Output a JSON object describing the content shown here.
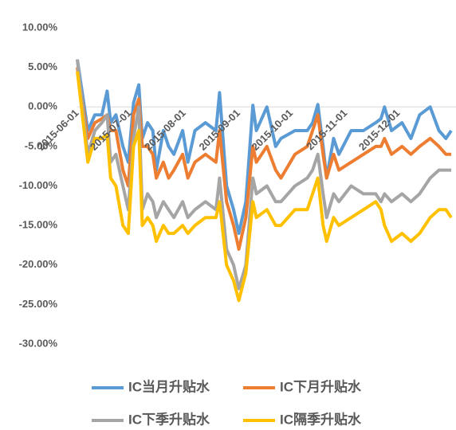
{
  "chart_data": {
    "type": "line",
    "x": [
      "2015-06-01",
      "2015-06-07",
      "2015-06-11",
      "2015-06-15",
      "2015-06-18",
      "2015-06-20",
      "2015-06-23",
      "2015-06-27",
      "2015-06-30",
      "2015-07-03",
      "2015-07-06",
      "2015-07-08",
      "2015-07-11",
      "2015-07-14",
      "2015-07-16",
      "2015-07-20",
      "2015-07-23",
      "2015-07-26",
      "2015-07-31",
      "2015-08-03",
      "2015-08-07",
      "2015-08-13",
      "2015-08-19",
      "2015-08-21",
      "2015-08-25",
      "2015-08-29",
      "2015-09-01",
      "2015-09-05",
      "2015-09-09",
      "2015-09-11",
      "2015-09-17",
      "2015-09-22",
      "2015-09-25",
      "2015-10-03",
      "2015-10-10",
      "2015-10-13",
      "2015-10-16",
      "2015-10-19",
      "2015-10-21",
      "2015-10-25",
      "2015-10-28",
      "2015-11-04",
      "2015-11-11",
      "2015-11-18",
      "2015-11-21",
      "2015-11-23",
      "2015-11-27",
      "2015-12-03",
      "2015-12-08",
      "2015-12-13",
      "2015-12-19",
      "2015-12-24",
      "2015-12-28",
      "2015-12-31"
    ],
    "series": [
      {
        "name": "IC当月升贴水",
        "color": "#5b9bd5",
        "values": [
          6,
          -3,
          -1,
          -1,
          2,
          -2,
          -1,
          -5,
          -7,
          0.5,
          2.8,
          -4,
          -2,
          -3,
          -8,
          -3,
          -5,
          -6,
          -3,
          -7,
          -3,
          -2,
          -3,
          1.8,
          -10,
          -13,
          -16,
          -12,
          0.2,
          -3,
          0,
          -5,
          -4,
          -3,
          -3,
          -2,
          0.3,
          -5,
          -9,
          -4,
          -6,
          -3,
          -3,
          -2,
          -1.5,
          0,
          -3,
          -2,
          -4,
          -1,
          0,
          -3,
          -4,
          -3
        ]
      },
      {
        "name": "IC下月升贴水",
        "color": "#ed7d31",
        "values": [
          5,
          -4,
          -2,
          -1.5,
          -1,
          -3,
          -3,
          -8,
          -10,
          -1,
          1,
          -5,
          -5,
          -6,
          -9,
          -7,
          -9,
          -8,
          -6,
          -9,
          -7,
          -6,
          -7,
          -3,
          -12,
          -15,
          -18,
          -14,
          -5,
          -7,
          -5,
          -8,
          -9,
          -6,
          -5,
          -3,
          -1,
          -6,
          -9,
          -6,
          -8,
          -7,
          -6,
          -5,
          -5,
          -4,
          -6,
          -5,
          -6,
          -5,
          -4,
          -5,
          -6,
          -6
        ]
      },
      {
        "name": "IC下季升贴水",
        "color": "#a5a5a5",
        "values": [
          6,
          -6,
          -3,
          -2,
          -1,
          -7,
          -6,
          -10,
          -13,
          -4,
          0,
          -13,
          -11,
          -12,
          -14,
          -12,
          -13,
          -14,
          -12,
          -14,
          -13,
          -12,
          -13,
          -9,
          -18,
          -20,
          -23,
          -20,
          -9,
          -11,
          -10,
          -12,
          -12,
          -10,
          -9,
          -8,
          -6,
          -11,
          -14,
          -11,
          -12,
          -10,
          -11,
          -11,
          -12,
          -11,
          -12,
          -11,
          -12,
          -11,
          -9,
          -8,
          -8,
          -8
        ]
      },
      {
        "name": "IC隔季升贴水",
        "color": "#ffc000",
        "values": [
          4.5,
          -7,
          -4,
          -4,
          -3.5,
          -9,
          -10,
          -15,
          -16,
          -5,
          -3,
          -15,
          -14,
          -15,
          -17,
          -15,
          -16,
          -16,
          -15,
          -16,
          -15,
          -14,
          -14,
          -12,
          -20,
          -22,
          -24.5,
          -21,
          -12,
          -14,
          -13,
          -15,
          -15,
          -13,
          -13,
          -11,
          -9,
          -15,
          -17,
          -14,
          -15,
          -14,
          -13,
          -12,
          -13,
          -15,
          -17,
          -16,
          -17,
          -16,
          -14,
          -13,
          -13,
          -14
        ]
      }
    ],
    "xlim": [
      "2015-06-01",
      "2015-12-31"
    ],
    "xticks": [
      "2015-06-01",
      "2015-07-01",
      "2015-08-01",
      "2015-09-01",
      "2015-10-01",
      "2015-11-01",
      "2015-12-01"
    ],
    "ylim": [
      -30,
      10
    ],
    "yticks": [
      {
        "value": 10,
        "label": "10.00%"
      },
      {
        "value": 5,
        "label": "5.00%"
      },
      {
        "value": 0,
        "label": "0.00%"
      },
      {
        "value": -5,
        "label": "-5.00%"
      },
      {
        "value": -10,
        "label": "-10.00%"
      },
      {
        "value": -15,
        "label": "-15.00%"
      },
      {
        "value": -20,
        "label": "-20.00%"
      },
      {
        "value": -25,
        "label": "-25.00%"
      },
      {
        "value": -30,
        "label": "-30.00%"
      }
    ],
    "grid": false,
    "legend": "bottom"
  }
}
